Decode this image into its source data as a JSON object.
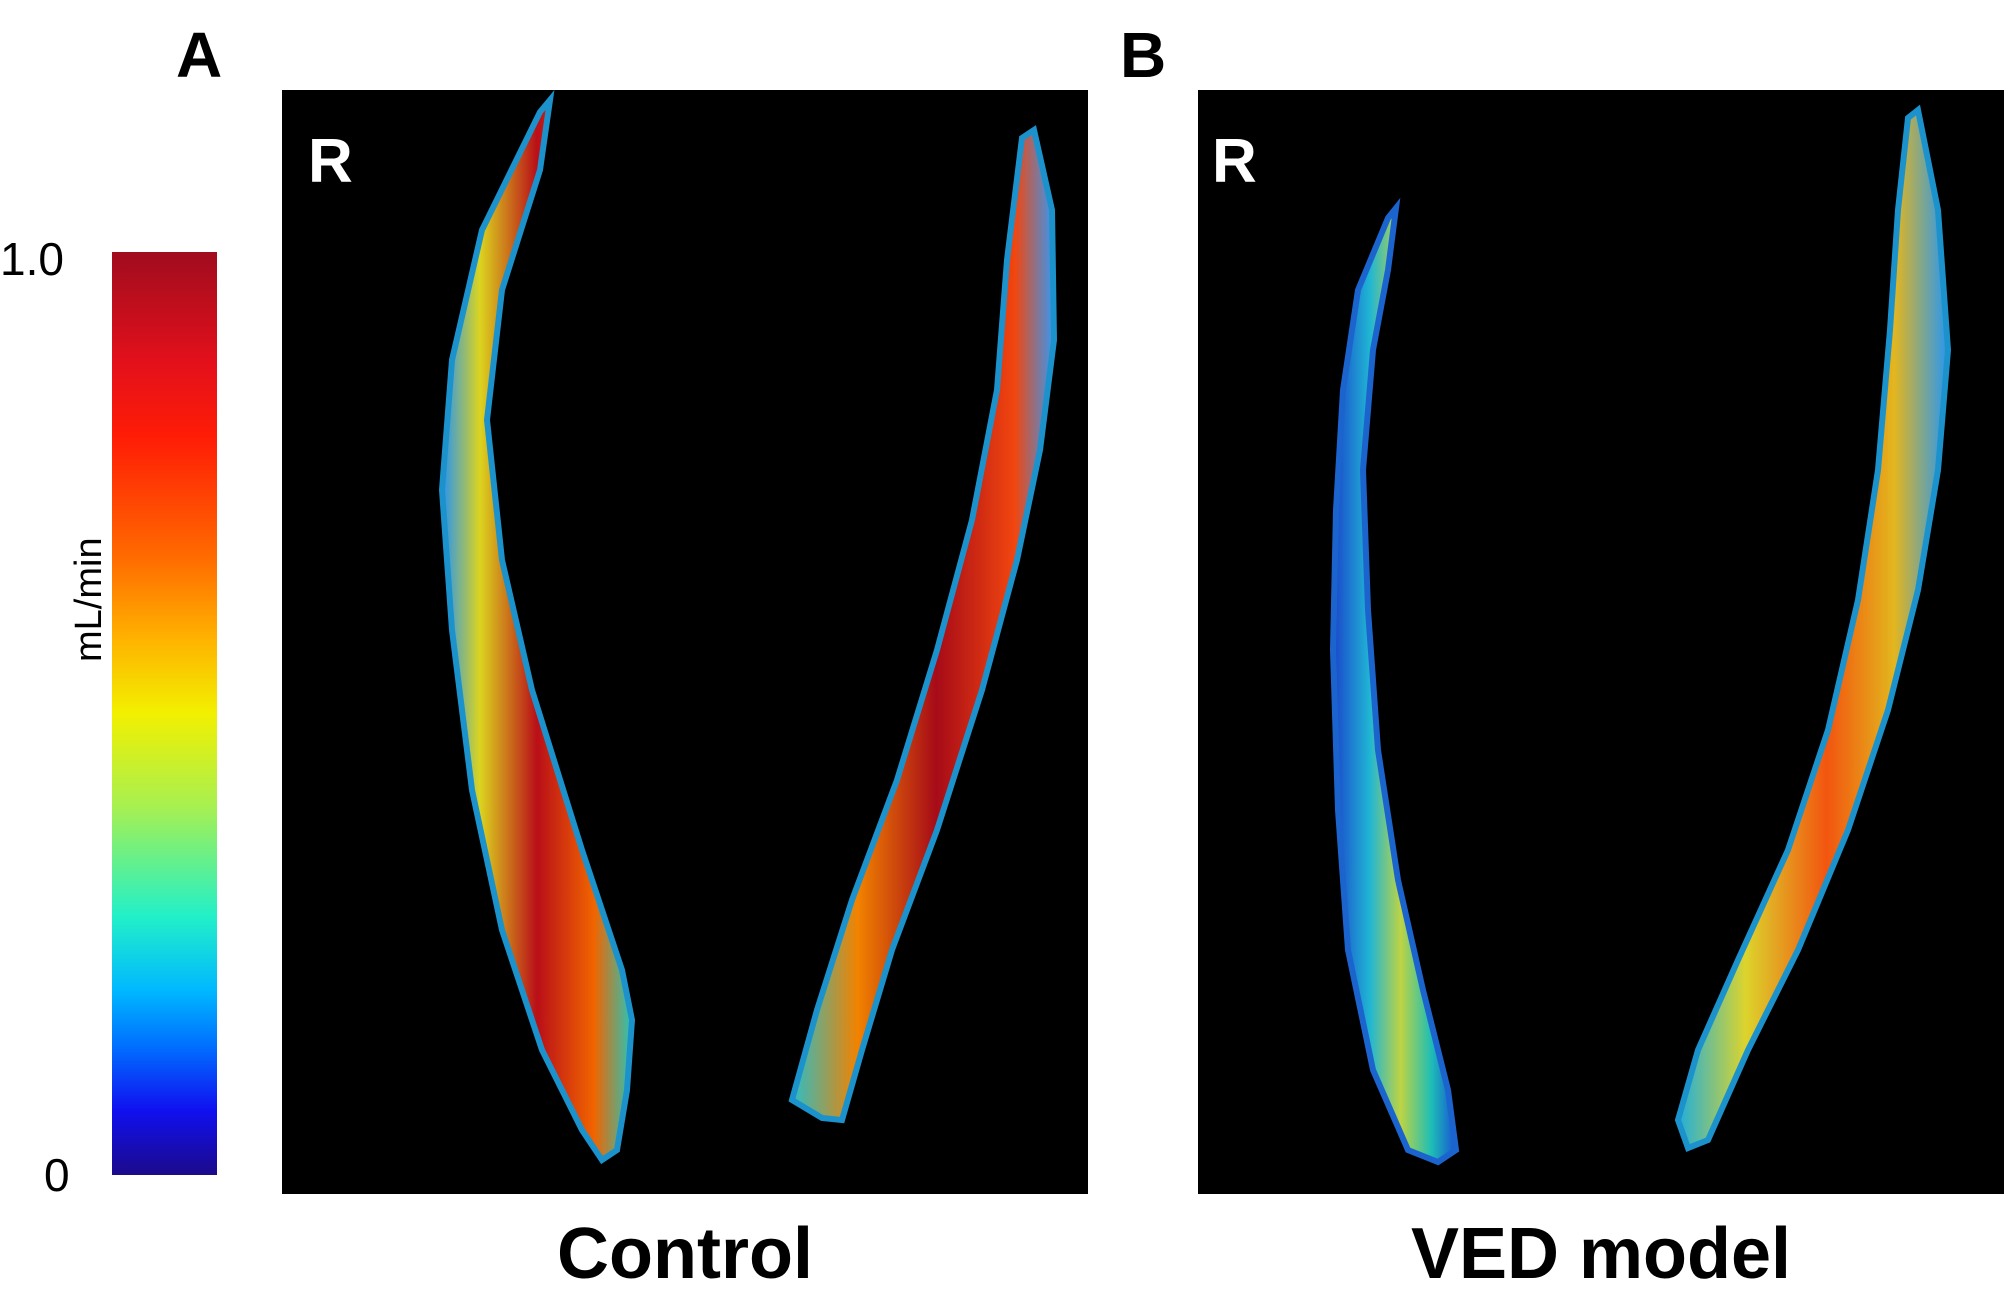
{
  "panels": [
    {
      "letter": "A",
      "side_label": "R",
      "caption": "Control"
    },
    {
      "letter": "B",
      "side_label": "R",
      "caption": "VED model"
    }
  ],
  "colorbar": {
    "max_label": "1.0",
    "min_label": "0",
    "unit": "mL/min",
    "colormap": "jet",
    "colors": [
      "#1c0a8a",
      "#0070ff",
      "#22f0c8",
      "#f2f000",
      "#ff6a00",
      "#e3101b",
      "#a00c1e"
    ]
  }
}
